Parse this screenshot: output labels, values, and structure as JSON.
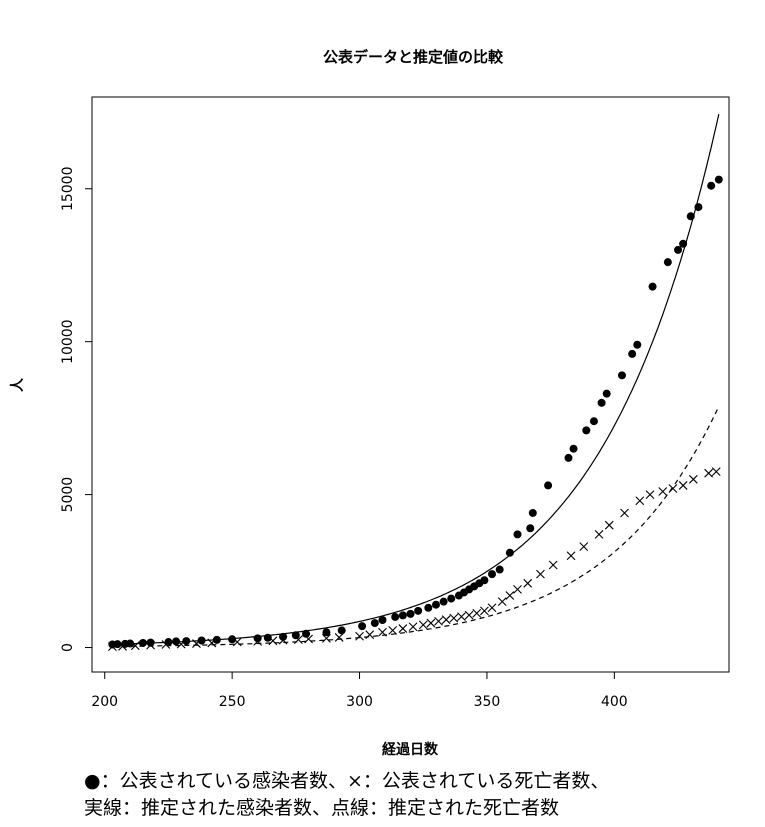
{
  "chart_data": {
    "type": "scatter",
    "title": "公表データと推定値の比較",
    "xlabel": "経過日数",
    "ylabel": "人",
    "xlim": [
      195,
      445
    ],
    "ylim": [
      -800,
      18000
    ],
    "xticks": [
      200,
      250,
      300,
      350,
      400
    ],
    "yticks": [
      0,
      5000,
      10000,
      15000
    ],
    "grid": false,
    "series": [
      {
        "marker": "dot",
        "points": [
          [
            203,
            100
          ],
          [
            205,
            110
          ],
          [
            208,
            120
          ],
          [
            210,
            130
          ],
          [
            215,
            150
          ],
          [
            218,
            160
          ],
          [
            225,
            180
          ],
          [
            228,
            200
          ],
          [
            232,
            210
          ],
          [
            238,
            230
          ],
          [
            244,
            250
          ],
          [
            250,
            270
          ],
          [
            260,
            300
          ],
          [
            264,
            320
          ],
          [
            270,
            350
          ],
          [
            275,
            400
          ],
          [
            279,
            450
          ],
          [
            287,
            500
          ],
          [
            293,
            560
          ],
          [
            301,
            700
          ],
          [
            306,
            800
          ],
          [
            309,
            900
          ],
          [
            314,
            1000
          ],
          [
            317,
            1050
          ],
          [
            320,
            1100
          ],
          [
            323,
            1200
          ],
          [
            327,
            1300
          ],
          [
            330,
            1400
          ],
          [
            333,
            1500
          ],
          [
            336,
            1600
          ],
          [
            339,
            1700
          ],
          [
            341,
            1800
          ],
          [
            343,
            1900
          ],
          [
            345,
            2000
          ],
          [
            347,
            2100
          ],
          [
            349,
            2200
          ],
          [
            352,
            2400
          ],
          [
            355,
            2550
          ],
          [
            359,
            3100
          ],
          [
            362,
            3700
          ],
          [
            367,
            3900
          ],
          [
            368,
            4400
          ],
          [
            374,
            5300
          ],
          [
            382,
            6200
          ],
          [
            384,
            6500
          ],
          [
            389,
            7100
          ],
          [
            392,
            7400
          ],
          [
            395,
            8000
          ],
          [
            397,
            8300
          ],
          [
            403,
            8900
          ],
          [
            407,
            9600
          ],
          [
            409,
            9900
          ],
          [
            415,
            11800
          ],
          [
            421,
            12600
          ],
          [
            425,
            13000
          ],
          [
            427,
            13200
          ],
          [
            430,
            14100
          ],
          [
            433,
            14400
          ],
          [
            438,
            15100
          ],
          [
            441,
            15300
          ]
        ]
      },
      {
        "marker": "cross",
        "points": [
          [
            203,
            30
          ],
          [
            207,
            40
          ],
          [
            212,
            60
          ],
          [
            218,
            80
          ],
          [
            224,
            100
          ],
          [
            230,
            110
          ],
          [
            236,
            130
          ],
          [
            242,
            150
          ],
          [
            252,
            180
          ],
          [
            260,
            200
          ],
          [
            266,
            220
          ],
          [
            270,
            240
          ],
          [
            276,
            260
          ],
          [
            280,
            280
          ],
          [
            287,
            300
          ],
          [
            292,
            330
          ],
          [
            300,
            370
          ],
          [
            304,
            420
          ],
          [
            309,
            500
          ],
          [
            313,
            560
          ],
          [
            317,
            620
          ],
          [
            321,
            680
          ],
          [
            325,
            740
          ],
          [
            328,
            800
          ],
          [
            331,
            860
          ],
          [
            334,
            910
          ],
          [
            337,
            960
          ],
          [
            340,
            1010
          ],
          [
            343,
            1060
          ],
          [
            346,
            1120
          ],
          [
            349,
            1200
          ],
          [
            352,
            1300
          ],
          [
            356,
            1500
          ],
          [
            359,
            1700
          ],
          [
            362,
            1900
          ],
          [
            366,
            2100
          ],
          [
            371,
            2400
          ],
          [
            376,
            2700
          ],
          [
            383,
            3000
          ],
          [
            388,
            3300
          ],
          [
            394,
            3700
          ],
          [
            398,
            4000
          ],
          [
            404,
            4400
          ],
          [
            410,
            4800
          ],
          [
            414,
            5000
          ],
          [
            419,
            5100
          ],
          [
            423,
            5200
          ],
          [
            427,
            5300
          ],
          [
            431,
            5500
          ],
          [
            437,
            5700
          ],
          [
            440,
            5750
          ]
        ]
      }
    ],
    "curves": [
      {
        "style": "solid",
        "a": 100.4,
        "b": 0.0214,
        "x0": 203,
        "x1": 441
      },
      {
        "style": "dashed",
        "a": 34.0,
        "b": 0.0226,
        "x0": 203,
        "x1": 441
      }
    ]
  },
  "legend": {
    "line1": "●：公表されている感染者数、×：公表されている死亡者数、",
    "line2": "実線：推定された感染者数、点線：推定された死亡者数"
  }
}
